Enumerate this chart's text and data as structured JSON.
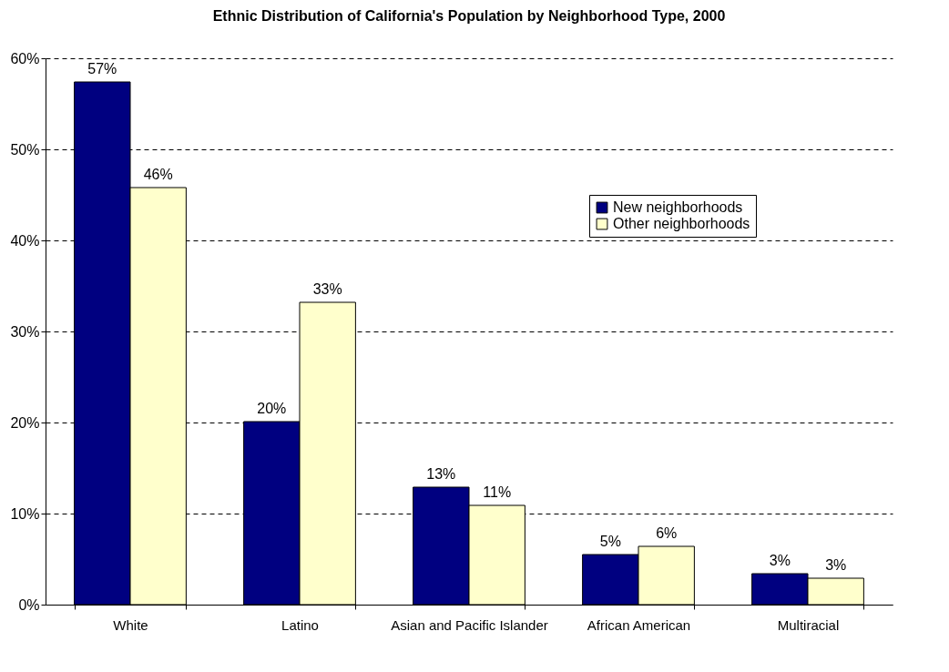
{
  "chart_data": {
    "type": "bar",
    "title": "Ethnic Distribution of California's Population by Neighborhood Type, 2000",
    "categories": [
      "White",
      "Latino",
      "Asian and Pacific Islander",
      "African American",
      "Multiracial"
    ],
    "series": [
      {
        "name": "New neighborhoods",
        "color": "#000080",
        "values": [
          57.4,
          20.1,
          12.9,
          5.5,
          3.4
        ],
        "value_labels": [
          "57%",
          "20%",
          "13%",
          "5%",
          "3%"
        ]
      },
      {
        "name": "Other neighborhoods",
        "color": "#ffffcc",
        "values": [
          45.8,
          33.2,
          10.9,
          6.4,
          2.9
        ],
        "value_labels": [
          "46%",
          "33%",
          "11%",
          "6%",
          "3%"
        ]
      }
    ],
    "ylim": [
      0,
      60
    ],
    "yticks": [
      {
        "value": 0,
        "label": "0%"
      },
      {
        "value": 10,
        "label": "10%"
      },
      {
        "value": 20,
        "label": "20%"
      },
      {
        "value": 30,
        "label": "30%"
      },
      {
        "value": 40,
        "label": "40%"
      },
      {
        "value": 50,
        "label": "50%"
      },
      {
        "value": 60,
        "label": "60%"
      }
    ],
    "grid": "y",
    "legend": "top right"
  }
}
